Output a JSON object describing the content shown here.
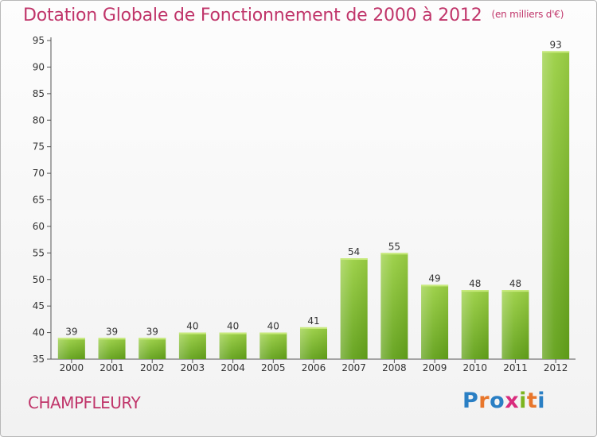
{
  "header": {
    "title": "Dotation Globale de Fonctionnement de 2000 à 2012",
    "unit": "(en milliers d'€)"
  },
  "footer": {
    "commune": "CHAMPFLEURY",
    "brand": "Proxiti",
    "brand_colors": [
      "#2a7fc4",
      "#e8762b",
      "#2a7fc4",
      "#d92c7d",
      "#7cb51f",
      "#e8762b",
      "#2a7fc4"
    ]
  },
  "colors": {
    "title": "#c0356a",
    "bar_top": "#9bd044",
    "bar_bottom": "#62a11a",
    "axis": "#555555",
    "label": "#333333"
  },
  "chart_data": {
    "type": "bar",
    "title": "Dotation Globale de Fonctionnement de 2000 à 2012",
    "subtitle": "(en milliers d'€)",
    "xlabel": "",
    "ylabel": "",
    "categories": [
      "2000",
      "2001",
      "2002",
      "2003",
      "2004",
      "2005",
      "2006",
      "2007",
      "2008",
      "2009",
      "2010",
      "2011",
      "2012"
    ],
    "values": [
      39,
      39,
      39,
      40,
      40,
      40,
      41,
      54,
      55,
      49,
      48,
      48,
      93
    ],
    "ylim": [
      35,
      95
    ],
    "yticks": [
      35,
      40,
      45,
      50,
      55,
      60,
      65,
      70,
      75,
      80,
      85,
      90,
      95
    ],
    "grid": false,
    "legend": "none"
  }
}
